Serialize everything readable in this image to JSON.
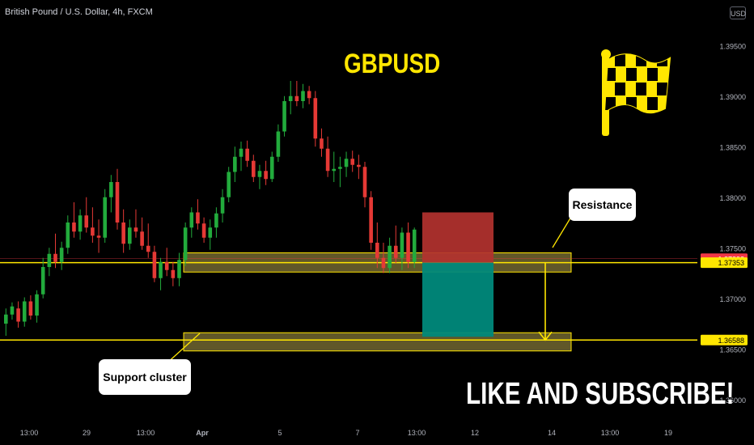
{
  "header": {
    "symbol_title": "British Pound / U.S. Dollar, 4h, FXCM",
    "currency_badge": "USD"
  },
  "annotations": {
    "big_title": "GBPUSD",
    "subscribe": "LIKE AND SUBSCRIBE!",
    "resistance_label": "Resistance",
    "support_label": "Support cluster"
  },
  "colors": {
    "background": "#000000",
    "up_candle": "#26a69a",
    "up_candle_bright": "#22ab3c",
    "down_candle": "#e53935",
    "zone_fill": "#d4c25a",
    "level_line": "#ffe600",
    "stop_zone": "#b3322f",
    "target_zone": "#00897b",
    "price_tag_red": "#f23645",
    "price_tag_yellow": "#ffe600"
  },
  "chart_data": {
    "type": "candlestick",
    "timeframe": "4h",
    "y_axis": {
      "ticks": [
        "1.39500",
        "1.39000",
        "1.38500",
        "1.38000",
        "1.37500",
        "1.37000",
        "1.36500",
        "1.36000"
      ],
      "range": [
        1.3555,
        1.3995
      ]
    },
    "x_axis": {
      "ticks": [
        "13:00",
        "29",
        "13:00",
        "Apr",
        "5",
        "7",
        "13:00",
        "12",
        "14",
        "13:00",
        "19"
      ],
      "bold_ticks": [
        "Apr"
      ]
    },
    "price_tags": [
      {
        "value": "1.37392",
        "style": "red"
      },
      {
        "value": "1.37353",
        "style": "yellow"
      },
      {
        "value": "1.36588",
        "style": "yellow"
      }
    ],
    "levels": [
      {
        "name": "resistance",
        "price": 1.37353
      },
      {
        "name": "support",
        "price": 1.36588
      }
    ],
    "zones": [
      {
        "name": "resistance-zone",
        "from": 1.3726,
        "to": 1.3745
      },
      {
        "name": "support-zone",
        "from": 1.3648,
        "to": 1.3666
      }
    ],
    "trade": {
      "entry": 1.37353,
      "stop": 1.3785,
      "target": 1.3662
    },
    "candles": [
      [
        1.3675,
        1.369,
        1.3663,
        1.3684
      ],
      [
        1.3684,
        1.3696,
        1.3679,
        1.3692
      ],
      [
        1.369,
        1.3697,
        1.3671,
        1.3677
      ],
      [
        1.3677,
        1.3701,
        1.3672,
        1.3697
      ],
      [
        1.3697,
        1.3703,
        1.3679,
        1.3683
      ],
      [
        1.3683,
        1.3708,
        1.3676,
        1.3704
      ],
      [
        1.3704,
        1.374,
        1.37,
        1.3731
      ],
      [
        1.3731,
        1.375,
        1.3722,
        1.3744
      ],
      [
        1.3744,
        1.3764,
        1.373,
        1.3736
      ],
      [
        1.3736,
        1.3756,
        1.3728,
        1.375
      ],
      [
        1.375,
        1.3782,
        1.3744,
        1.3775
      ],
      [
        1.3775,
        1.3795,
        1.376,
        1.3766
      ],
      [
        1.3766,
        1.3788,
        1.3758,
        1.3782
      ],
      [
        1.3782,
        1.38,
        1.3765,
        1.377
      ],
      [
        1.377,
        1.379,
        1.3755,
        1.3762
      ],
      [
        1.3762,
        1.3778,
        1.3745,
        1.376
      ],
      [
        1.376,
        1.3808,
        1.3755,
        1.38
      ],
      [
        1.38,
        1.3822,
        1.3785,
        1.3815
      ],
      [
        1.3815,
        1.3828,
        1.3768,
        1.3775
      ],
      [
        1.3775,
        1.3788,
        1.3745,
        1.3754
      ],
      [
        1.3754,
        1.3778,
        1.3748,
        1.377
      ],
      [
        1.377,
        1.3788,
        1.376,
        1.3766
      ],
      [
        1.3766,
        1.378,
        1.3748,
        1.3752
      ],
      [
        1.3752,
        1.3774,
        1.374,
        1.3746
      ],
      [
        1.3746,
        1.3752,
        1.3716,
        1.372
      ],
      [
        1.372,
        1.374,
        1.3708,
        1.3736
      ],
      [
        1.3736,
        1.375,
        1.3722,
        1.3728
      ],
      [
        1.3728,
        1.3736,
        1.3712,
        1.372
      ],
      [
        1.372,
        1.3745,
        1.3712,
        1.3738
      ],
      [
        1.3738,
        1.3775,
        1.3732,
        1.377
      ],
      [
        1.377,
        1.379,
        1.376,
        1.3785
      ],
      [
        1.3785,
        1.3798,
        1.3768,
        1.3774
      ],
      [
        1.3774,
        1.378,
        1.3755,
        1.376
      ],
      [
        1.376,
        1.3778,
        1.3748,
        1.377
      ],
      [
        1.377,
        1.379,
        1.376,
        1.3784
      ],
      [
        1.3784,
        1.3808,
        1.3775,
        1.38
      ],
      [
        1.38,
        1.383,
        1.3795,
        1.3825
      ],
      [
        1.3825,
        1.385,
        1.3815,
        1.384
      ],
      [
        1.384,
        1.3855,
        1.3826,
        1.3848
      ],
      [
        1.3848,
        1.3856,
        1.383,
        1.3836
      ],
      [
        1.3836,
        1.3842,
        1.3815,
        1.382
      ],
      [
        1.382,
        1.3832,
        1.3808,
        1.3826
      ],
      [
        1.3826,
        1.3836,
        1.3812,
        1.3818
      ],
      [
        1.3818,
        1.3845,
        1.3815,
        1.384
      ],
      [
        1.384,
        1.3872,
        1.3835,
        1.3865
      ],
      [
        1.3865,
        1.39,
        1.386,
        1.3895
      ],
      [
        1.3895,
        1.3915,
        1.3882,
        1.39
      ],
      [
        1.39,
        1.3915,
        1.389,
        1.3895
      ],
      [
        1.3895,
        1.3912,
        1.3888,
        1.3905
      ],
      [
        1.3905,
        1.391,
        1.3892,
        1.3898
      ],
      [
        1.3898,
        1.3905,
        1.385,
        1.3858
      ],
      [
        1.3858,
        1.3868,
        1.384,
        1.3848
      ],
      [
        1.3848,
        1.386,
        1.382,
        1.3826
      ],
      [
        1.3826,
        1.3845,
        1.3815,
        1.3828
      ],
      [
        1.3828,
        1.384,
        1.381,
        1.383
      ],
      [
        1.383,
        1.3845,
        1.382,
        1.3838
      ],
      [
        1.3838,
        1.3846,
        1.3825,
        1.3832
      ],
      [
        1.3832,
        1.3842,
        1.3818,
        1.383
      ],
      [
        1.383,
        1.3835,
        1.379,
        1.38
      ],
      [
        1.38,
        1.3806,
        1.3748,
        1.3755
      ],
      [
        1.3755,
        1.3775,
        1.373,
        1.374
      ],
      [
        1.374,
        1.3755,
        1.3725,
        1.373
      ],
      [
        1.373,
        1.376,
        1.3725,
        1.3752
      ],
      [
        1.3752,
        1.3772,
        1.3735,
        1.374
      ],
      [
        1.374,
        1.377,
        1.3728,
        1.3765
      ],
      [
        1.3765,
        1.3775,
        1.373,
        1.3736
      ],
      [
        1.3736,
        1.377,
        1.373,
        1.3768
      ]
    ]
  }
}
